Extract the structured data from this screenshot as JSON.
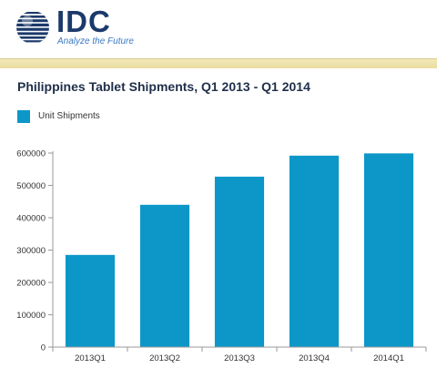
{
  "brand": {
    "name": "IDC",
    "tagline": "Analyze the Future"
  },
  "colors": {
    "bar": "#0d97c9",
    "brand_blue": "#1b3a6b",
    "band": "#efe4b0"
  },
  "chart_data": {
    "type": "bar",
    "title": "Philippines Tablet Shipments, Q1 2013 - Q1 2014",
    "categories": [
      "2013Q1",
      "2013Q2",
      "2013Q3",
      "2013Q4",
      "2014Q1"
    ],
    "series": [
      {
        "name": "Unit Shipments",
        "values": [
          285000,
          440000,
          527000,
          592000,
          599000
        ]
      }
    ],
    "ylim": [
      0,
      600000
    ],
    "yticks": [
      "0",
      "100000",
      "200000",
      "300000",
      "400000",
      "500000",
      "600000"
    ],
    "grid": false,
    "legend": "top-left"
  }
}
